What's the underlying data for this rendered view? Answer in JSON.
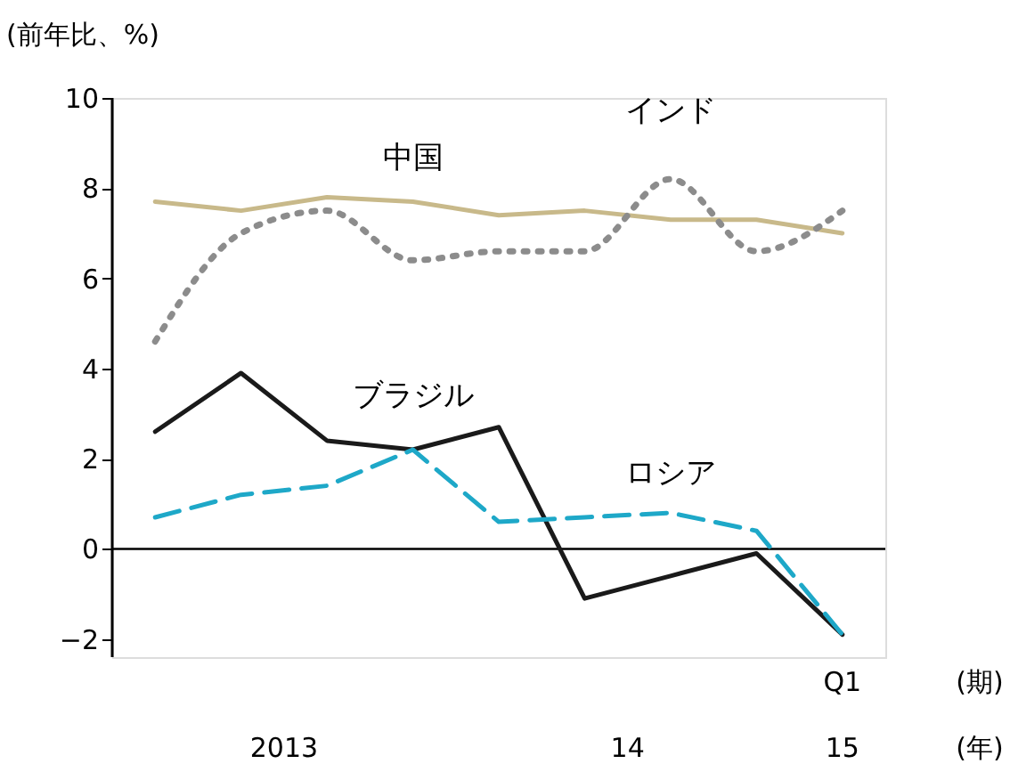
{
  "chart_data": {
    "type": "line",
    "ylabel": "(前年比、%)",
    "categories": [
      null,
      null,
      null,
      null,
      null,
      null,
      null,
      null,
      null
    ],
    "series": [
      {
        "name": "中国",
        "color": "#c8b98a",
        "line_style": "solid",
        "values": [
          7.7,
          7.5,
          7.8,
          7.7,
          7.4,
          7.5,
          7.3,
          7.3,
          7.0
        ]
      },
      {
        "name": "インド",
        "color": "#8c8c8c",
        "line_style": "dotted",
        "values": [
          4.6,
          7.0,
          7.5,
          6.4,
          6.6,
          6.6,
          8.2,
          6.6,
          7.5
        ]
      },
      {
        "name": "ブラジル",
        "color": "#1a1a1a",
        "line_style": "solid",
        "values": [
          2.6,
          3.9,
          2.4,
          2.2,
          2.7,
          -1.1,
          -0.6,
          -0.1,
          -1.9
        ]
      },
      {
        "name": "ロシア",
        "color": "#1ea8c8",
        "line_style": "dashed",
        "values": [
          0.7,
          1.2,
          1.4,
          2.2,
          0.6,
          0.7,
          0.8,
          0.4,
          -1.9
        ]
      }
    ],
    "ylim": [
      -2.4,
      10
    ],
    "yticks": [
      -2,
      0,
      2,
      4,
      6,
      8,
      10
    ],
    "ref_lines": [
      {
        "axis": "y",
        "value": 0,
        "color": "#000000"
      }
    ],
    "annotations": [
      "Q1",
      "2013",
      "14",
      "15",
      "(期)",
      "(年)"
    ],
    "tick_labels": "y",
    "grid": false,
    "marker": "none"
  }
}
